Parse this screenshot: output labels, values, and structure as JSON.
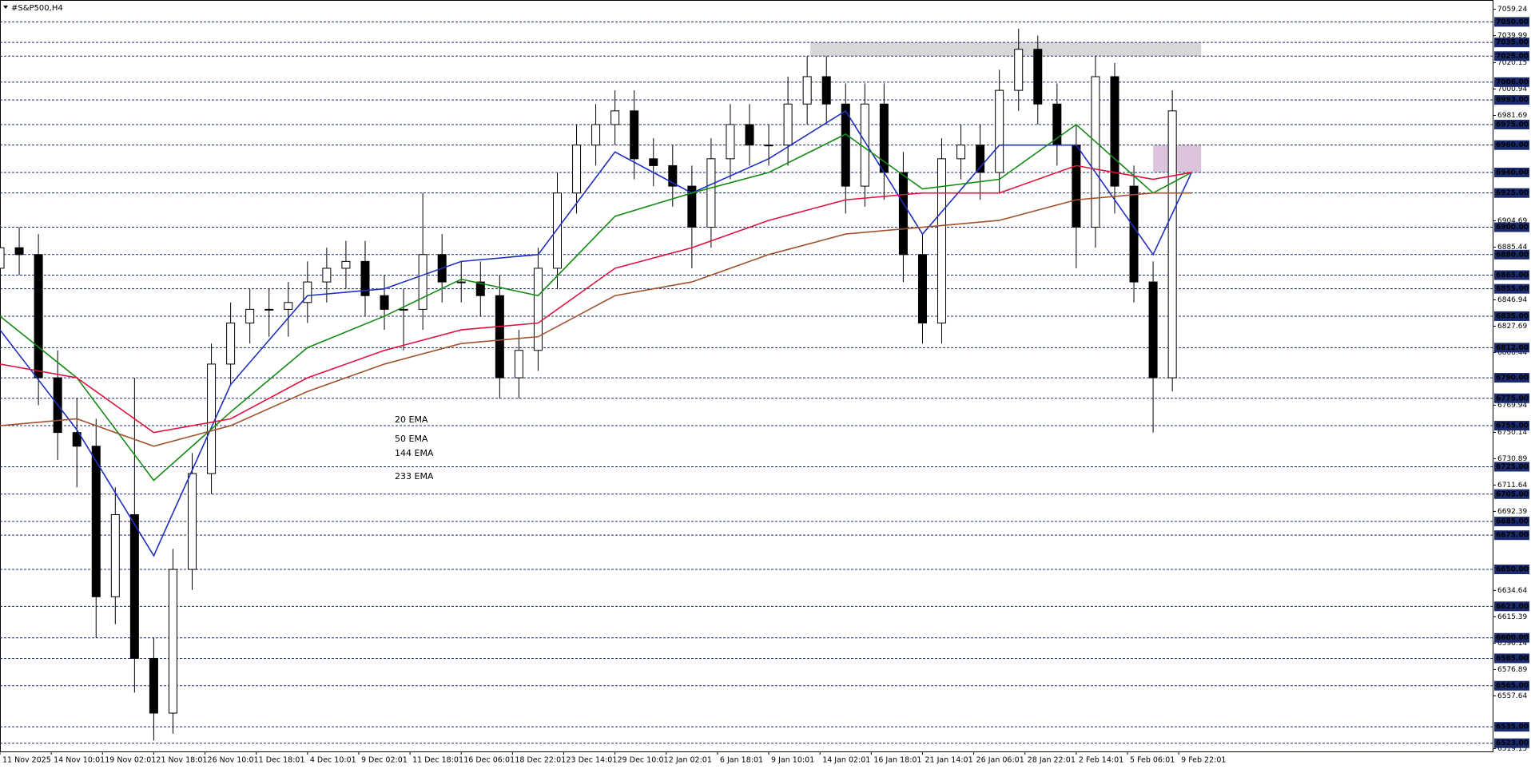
{
  "chart_data": {
    "type": "candlestick",
    "title": "#S&P500,H4",
    "xlim": [
      0,
      466
    ],
    "ylim": [
      6517,
      7066
    ],
    "xticks": [
      {
        "value": 0,
        "label": "11 Nov 2025"
      },
      {
        "value": 16,
        "label": "14 Nov 10:01"
      },
      {
        "value": 32,
        "label": "19 Nov 02:01"
      },
      {
        "value": 48,
        "label": "21 Nov 18:01"
      },
      {
        "value": 64,
        "label": "26 Nov 10:01"
      },
      {
        "value": 80,
        "label": "1 Dec 18:01"
      },
      {
        "value": 96,
        "label": "4 Dec 10:01"
      },
      {
        "value": 112,
        "label": "9 Dec 02:01"
      },
      {
        "value": 128,
        "label": "11 Dec 18:01"
      },
      {
        "value": 144,
        "label": "16 Dec 06:01"
      },
      {
        "value": 160,
        "label": "18 Dec 22:01"
      },
      {
        "value": 176,
        "label": "23 Dec 14:01"
      },
      {
        "value": 192,
        "label": "29 Dec 10:01"
      },
      {
        "value": 208,
        "label": "2 Jan 02:01"
      },
      {
        "value": 224,
        "label": "6 Jan 18:01"
      },
      {
        "value": 240,
        "label": "9 Jan 10:01"
      },
      {
        "value": 256,
        "label": "14 Jan 02:01"
      },
      {
        "value": 272,
        "label": "16 Jan 18:01"
      },
      {
        "value": 288,
        "label": "21 Jan 14:01"
      },
      {
        "value": 304,
        "label": "26 Jan 06:01"
      },
      {
        "value": 320,
        "label": "28 Jan 22:01"
      },
      {
        "value": 336,
        "label": "2 Feb 14:01"
      },
      {
        "value": 352,
        "label": "5 Feb 06:01"
      },
      {
        "value": 368,
        "label": "9 Feb 22:01"
      }
    ],
    "yticks": [
      7059.24,
      7039.99,
      7020.15,
      7000.94,
      6981.69,
      6904.69,
      6885.44,
      6846.94,
      6827.69,
      6808.44,
      6769.94,
      6750.14,
      6730.89,
      6711.64,
      6692.39,
      6634.64,
      6615.39,
      6596.14,
      6576.89,
      6557.64,
      6519.15
    ],
    "levels": [
      {
        "value": 7050,
        "label": "7050.00"
      },
      {
        "value": 7035,
        "label": "7035.00"
      },
      {
        "value": 7025,
        "label": "7025.00"
      },
      {
        "value": 7006,
        "label": "7006.00"
      },
      {
        "value": 6993,
        "label": "6993.00"
      },
      {
        "value": 6975,
        "label": "6975.00"
      },
      {
        "value": 6960,
        "label": "6960.00"
      },
      {
        "value": 6940,
        "label": "6940.00"
      },
      {
        "value": 6925,
        "label": "6925.00"
      },
      {
        "value": 6900,
        "label": "6900.00"
      },
      {
        "value": 6880,
        "label": "6880.00"
      },
      {
        "value": 6865,
        "label": "6865.00"
      },
      {
        "value": 6855,
        "label": "6855.00"
      },
      {
        "value": 6835,
        "label": "6835.00"
      },
      {
        "value": 6812,
        "label": "6812.00"
      },
      {
        "value": 6790,
        "label": "6790.00"
      },
      {
        "value": 6775,
        "label": "6775.00"
      },
      {
        "value": 6755,
        "label": "6755.00"
      },
      {
        "value": 6725,
        "label": "6725.00"
      },
      {
        "value": 6705,
        "label": "6705.00"
      },
      {
        "value": 6685,
        "label": "6685.00"
      },
      {
        "value": 6675,
        "label": "6675.00"
      },
      {
        "value": 6650,
        "label": "6650.00"
      },
      {
        "value": 6623,
        "label": "6623.00"
      },
      {
        "value": 6600,
        "label": "6600.00"
      },
      {
        "value": 6585,
        "label": "6585.00"
      },
      {
        "value": 6565,
        "label": "6565.00"
      },
      {
        "value": 6535,
        "label": "6535.00"
      },
      {
        "value": 6523,
        "label": "6523.00"
      }
    ],
    "level_color": "#1a2a6c",
    "zones": [
      {
        "x": [
          253,
          375
        ],
        "y": [
          7025,
          7035
        ],
        "color": "#d3d3d3"
      },
      {
        "x": [
          360,
          375
        ],
        "y": [
          6940,
          6960
        ],
        "color": "#d8bfd8"
      }
    ],
    "ohlc": {
      "color": "#000000",
      "x": [
        0,
        6,
        12,
        18,
        24,
        30,
        36,
        42,
        48,
        54,
        60,
        66,
        72,
        78,
        84,
        90,
        96,
        102,
        108,
        114,
        120,
        126,
        132,
        138,
        144,
        150,
        156,
        162,
        168,
        174,
        180,
        186,
        192,
        198,
        204,
        210,
        216,
        222,
        228,
        234,
        240,
        246,
        252,
        258,
        264,
        270,
        276,
        282,
        288,
        294,
        300,
        306,
        312,
        318,
        324,
        330,
        336,
        342,
        348,
        354,
        360,
        366
      ],
      "open": [
        6870,
        6885,
        6880,
        6790,
        6750,
        6740,
        6630,
        6690,
        6585,
        6545,
        6650,
        6720,
        6800,
        6830,
        6840,
        6840,
        6845,
        6860,
        6870,
        6875,
        6850,
        6840,
        6840,
        6880,
        6860,
        6860,
        6850,
        6790,
        6810,
        6870,
        6925,
        6960,
        6975,
        6985,
        6950,
        6945,
        6930,
        6900,
        6950,
        6975,
        6960,
        6960,
        6990,
        7010,
        6990,
        6930,
        6990,
        6940,
        6880,
        6830,
        6950,
        6960,
        6940,
        7000,
        7030,
        6990,
        6960,
        6900,
        7010,
        6930,
        6860,
        6790
      ],
      "high": [
        6900,
        6900,
        6895,
        6810,
        6775,
        6760,
        6710,
        6790,
        6600,
        6665,
        6735,
        6815,
        6845,
        6855,
        6855,
        6860,
        6875,
        6885,
        6890,
        6890,
        6865,
        6855,
        6925,
        6895,
        6875,
        6875,
        6865,
        6825,
        6885,
        6940,
        6975,
        6990,
        7000,
        7000,
        6965,
        6960,
        6945,
        6965,
        6990,
        6990,
        6975,
        7010,
        7025,
        7025,
        7005,
        7005,
        7005,
        6955,
        6895,
        6965,
        6975,
        6975,
        7015,
        7045,
        7040,
        7005,
        6975,
        7025,
        7020,
        6945,
        6875,
        7000
      ],
      "low": [
        6855,
        6865,
        6770,
        6730,
        6710,
        6600,
        6610,
        6560,
        6525,
        6530,
        6635,
        6705,
        6785,
        6815,
        6820,
        6820,
        6830,
        6845,
        6855,
        6835,
        6825,
        6810,
        6825,
        6845,
        6845,
        6835,
        6775,
        6775,
        6795,
        6855,
        6910,
        6945,
        6960,
        6935,
        6930,
        6915,
        6870,
        6885,
        6935,
        6945,
        6945,
        6945,
        6975,
        6975,
        6910,
        6915,
        6920,
        6860,
        6815,
        6815,
        6935,
        6920,
        6925,
        6985,
        6975,
        6945,
        6870,
        6885,
        6910,
        6845,
        6750,
        6780
      ],
      "close": [
        6885,
        6880,
        6790,
        6750,
        6740,
        6630,
        6690,
        6585,
        6545,
        6650,
        6720,
        6800,
        6830,
        6840,
        6840,
        6845,
        6860,
        6870,
        6875,
        6850,
        6840,
        6840,
        6880,
        6860,
        6860,
        6850,
        6790,
        6810,
        6870,
        6925,
        6960,
        6975,
        6985,
        6950,
        6945,
        6930,
        6900,
        6950,
        6975,
        6960,
        6960,
        6990,
        7010,
        6990,
        6930,
        6990,
        6940,
        6880,
        6830,
        6950,
        6960,
        6940,
        7000,
        7030,
        6990,
        6960,
        6900,
        7010,
        6930,
        6860,
        6790,
        6985
      ]
    },
    "series": [
      {
        "name": "20 EMA",
        "color": "#1f2fbf",
        "x": [
          0,
          24,
          48,
          72,
          96,
          120,
          144,
          168,
          192,
          216,
          240,
          264,
          288,
          312,
          336,
          360,
          372
        ],
        "values": [
          6825,
          6752,
          6660,
          6785,
          6850,
          6855,
          6875,
          6880,
          6955,
          6925,
          6950,
          6985,
          6895,
          6960,
          6960,
          6880,
          6940
        ]
      },
      {
        "name": "50 EMA",
        "color": "#168a16",
        "x": [
          0,
          24,
          48,
          72,
          96,
          120,
          144,
          168,
          192,
          216,
          240,
          264,
          288,
          312,
          336,
          360,
          372
        ],
        "values": [
          6835,
          6790,
          6715,
          6765,
          6812,
          6835,
          6862,
          6850,
          6908,
          6925,
          6940,
          6968,
          6928,
          6935,
          6975,
          6925,
          6940
        ]
      },
      {
        "name": "144 EMA",
        "color": "#e0143c",
        "x": [
          0,
          24,
          48,
          72,
          96,
          120,
          144,
          168,
          192,
          216,
          240,
          264,
          288,
          312,
          336,
          360,
          372
        ],
        "values": [
          6800,
          6790,
          6750,
          6760,
          6790,
          6810,
          6825,
          6830,
          6870,
          6885,
          6905,
          6920,
          6925,
          6925,
          6945,
          6935,
          6940
        ]
      },
      {
        "name": "233 EMA",
        "color": "#a0522d",
        "x": [
          0,
          24,
          48,
          72,
          96,
          120,
          144,
          168,
          192,
          216,
          240,
          264,
          288,
          312,
          336,
          360,
          372
        ],
        "values": [
          6755,
          6760,
          6740,
          6755,
          6780,
          6800,
          6815,
          6820,
          6850,
          6860,
          6880,
          6895,
          6900,
          6905,
          6920,
          6925,
          6925
        ]
      }
    ]
  }
}
